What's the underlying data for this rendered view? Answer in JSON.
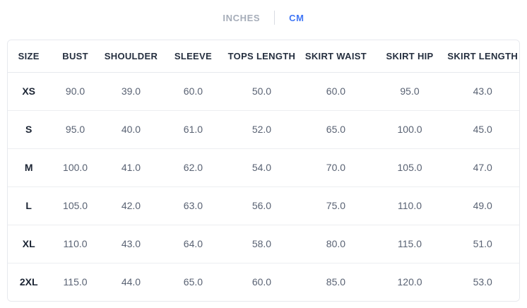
{
  "tabs": {
    "inches_label": "INCHES",
    "cm_label": "CM",
    "active_tab": "CM"
  },
  "colors": {
    "active_tab_text": "#4177f6",
    "inactive_tab_text": "#a6adb9",
    "header_text": "#252f3f",
    "size_label_text": "#1b2433",
    "value_text": "#596273",
    "table_border": "#e7e9ee"
  },
  "size_chart": {
    "unit": "CM",
    "columns": [
      "SIZE",
      "BUST",
      "SHOULDER",
      "SLEEVE",
      "TOPS LENGTH",
      "SKIRT WAIST",
      "SKIRT HIP",
      "SKIRT LENGTH"
    ],
    "rows": [
      {
        "size": "XS",
        "values": [
          "90.0",
          "39.0",
          "60.0",
          "50.0",
          "60.0",
          "95.0",
          "43.0"
        ]
      },
      {
        "size": "S",
        "values": [
          "95.0",
          "40.0",
          "61.0",
          "52.0",
          "65.0",
          "100.0",
          "45.0"
        ]
      },
      {
        "size": "M",
        "values": [
          "100.0",
          "41.0",
          "62.0",
          "54.0",
          "70.0",
          "105.0",
          "47.0"
        ]
      },
      {
        "size": "L",
        "values": [
          "105.0",
          "42.0",
          "63.0",
          "56.0",
          "75.0",
          "110.0",
          "49.0"
        ]
      },
      {
        "size": "XL",
        "values": [
          "110.0",
          "43.0",
          "64.0",
          "58.0",
          "80.0",
          "115.0",
          "51.0"
        ]
      },
      {
        "size": "2XL",
        "values": [
          "115.0",
          "44.0",
          "65.0",
          "60.0",
          "85.0",
          "120.0",
          "53.0"
        ]
      }
    ]
  }
}
